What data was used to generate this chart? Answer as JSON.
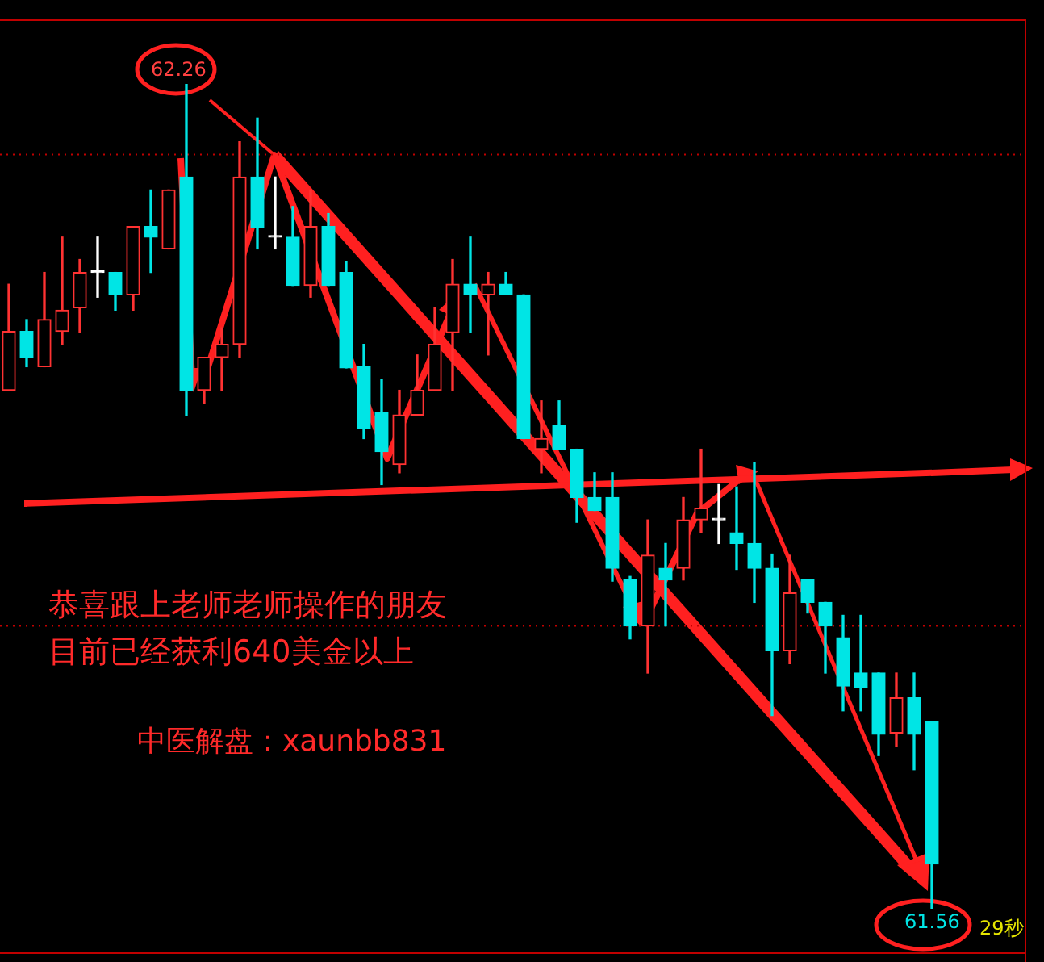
{
  "chart_data": {
    "type": "candlestick",
    "categories": [
      null,
      null,
      null,
      null,
      null,
      null,
      null,
      null,
      null,
      null,
      null,
      null,
      null,
      null,
      null,
      null,
      null,
      null,
      null,
      null,
      null,
      null,
      null,
      null,
      null,
      null,
      null,
      null,
      null,
      null,
      null,
      null,
      null,
      null,
      null,
      null,
      null,
      null,
      null,
      null,
      null,
      null,
      null,
      null,
      null,
      null,
      null,
      null,
      null,
      null,
      null,
      null,
      null
    ],
    "ohlc": [
      [
        62.0,
        62.09,
        62.0,
        62.05
      ],
      [
        62.05,
        62.06,
        62.02,
        62.028
      ],
      [
        62.02,
        62.1,
        62.02,
        62.06
      ],
      [
        62.05,
        62.13,
        62.039,
        62.068
      ],
      [
        62.07,
        62.111,
        62.049,
        62.1
      ],
      [
        62.1,
        62.13,
        62.079,
        62.1
      ],
      [
        62.1,
        62.1,
        62.068,
        62.081
      ],
      [
        62.081,
        62.139,
        62.068,
        62.139
      ],
      [
        62.139,
        62.17,
        62.1,
        62.13
      ],
      [
        62.12,
        62.17,
        62.12,
        62.17
      ],
      [
        62.181,
        62.26,
        61.979,
        62.0
      ],
      [
        62.0,
        62.028,
        61.989,
        62.028
      ],
      [
        62.028,
        62.053,
        62.0,
        62.039
      ],
      [
        62.039,
        62.211,
        62.028,
        62.181
      ],
      [
        62.181,
        62.231,
        62.12,
        62.138
      ],
      [
        62.13,
        62.181,
        62.12,
        62.13
      ],
      [
        62.13,
        62.156,
        62.089,
        62.089
      ],
      [
        62.089,
        62.17,
        62.079,
        62.139
      ],
      [
        62.139,
        62.15,
        62.089,
        62.089
      ],
      [
        62.1,
        62.109,
        62.019,
        62.019
      ],
      [
        62.02,
        62.039,
        61.959,
        61.968
      ],
      [
        61.981,
        62.009,
        61.92,
        61.948
      ],
      [
        61.937,
        62.0,
        61.93,
        61.979
      ],
      [
        61.979,
        62.03,
        61.979,
        62.0
      ],
      [
        62.0,
        62.07,
        62.0,
        62.039
      ],
      [
        62.049,
        62.111,
        62.0,
        62.09
      ],
      [
        62.09,
        62.13,
        62.049,
        62.081
      ],
      [
        62.081,
        62.1,
        62.03,
        62.09
      ],
      [
        62.09,
        62.1,
        62.081,
        62.081
      ],
      [
        62.081,
        62.081,
        61.959,
        61.959
      ],
      [
        61.95,
        61.991,
        61.93,
        61.959
      ],
      [
        61.97,
        61.991,
        61.95,
        61.95
      ],
      [
        61.95,
        61.95,
        61.888,
        61.909
      ],
      [
        61.909,
        61.93,
        61.898,
        61.898
      ],
      [
        61.909,
        61.93,
        61.838,
        61.849
      ],
      [
        61.839,
        61.842,
        61.789,
        61.8
      ],
      [
        61.8,
        61.89,
        61.76,
        61.86
      ],
      [
        61.849,
        61.87,
        61.8,
        61.839
      ],
      [
        61.849,
        61.909,
        61.839,
        61.89
      ],
      [
        61.89,
        61.95,
        61.879,
        61.9
      ],
      [
        61.89,
        61.92,
        61.87,
        61.89
      ],
      [
        61.879,
        61.918,
        61.848,
        61.87
      ],
      [
        61.87,
        61.939,
        61.82,
        61.849
      ],
      [
        61.849,
        61.861,
        61.724,
        61.779
      ],
      [
        61.779,
        61.86,
        61.768,
        61.828
      ],
      [
        61.839,
        61.839,
        61.811,
        61.82
      ],
      [
        61.82,
        61.82,
        61.76,
        61.8
      ],
      [
        61.79,
        61.809,
        61.728,
        61.749
      ],
      [
        61.76,
        61.809,
        61.728,
        61.748
      ],
      [
        61.76,
        61.76,
        61.69,
        61.708
      ],
      [
        61.709,
        61.76,
        61.698,
        61.739
      ],
      [
        61.739,
        61.76,
        61.678,
        61.708
      ],
      [
        61.719,
        61.719,
        61.56,
        61.598
      ]
    ],
    "colors": [
      "#ff3232",
      "#00e5e5",
      "#ff3232",
      "#ff3232",
      "#ff3232",
      "#ffffff",
      "#00e5e5",
      "#ff3232",
      "#00e5e5",
      "#ff3232",
      "#00e5e5",
      "#ff3232",
      "#ff3232",
      "#ff3232",
      "#00e5e5",
      "#ffffff",
      "#00e5e5",
      "#ff3232",
      "#00e5e5",
      "#00e5e5",
      "#00e5e5",
      "#00e5e5",
      "#ff3232",
      "#ff3232",
      "#ff3232",
      "#ff3232",
      "#00e5e5",
      "#ff3232",
      "#00e5e5",
      "#00e5e5",
      "#ff3232",
      "#00e5e5",
      "#00e5e5",
      "#00e5e5",
      "#00e5e5",
      "#00e5e5",
      "#ff3232",
      "#00e5e5",
      "#ff3232",
      "#ff3232",
      "#ffffff",
      "#00e5e5",
      "#00e5e5",
      "#00e5e5",
      "#ff3232",
      "#00e5e5",
      "#00e5e5",
      "#00e5e5",
      "#00e5e5",
      "#00e5e5",
      "#ff3232",
      "#00e5e5",
      "#00e5e5"
    ],
    "series": [
      {
        "type": "line",
        "color": "#ff2020",
        "values": [
          null,
          61.904,
          null,
          null,
          null,
          null,
          null,
          null,
          null,
          null,
          null,
          null,
          null,
          null,
          null,
          null,
          null,
          null,
          null,
          null,
          null,
          null,
          null,
          null,
          null,
          null,
          null,
          null,
          null,
          null,
          null,
          null,
          null,
          null,
          null,
          null,
          null,
          null,
          null,
          null,
          null,
          null,
          null,
          null,
          null,
          null,
          null,
          null,
          null,
          null,
          null,
          null,
          61.93
        ]
      }
    ],
    "ref_lines": [
      {
        "axis": "y",
        "value": 62.2,
        "color": "#c00000",
        "line_style": "dotted"
      },
      {
        "axis": "y",
        "value": 61.8,
        "color": "#c00000",
        "line_style": "dotted"
      }
    ],
    "annotations": [
      {
        "text": "62.26",
        "y": 62.26
      },
      {
        "text": "61.56",
        "y": 61.56
      },
      "恭喜跟上老师老师操作的朋友",
      "目前已经获利640美金以上",
      "中医解盘：xaunbb831",
      "29秒"
    ]
  }
}
